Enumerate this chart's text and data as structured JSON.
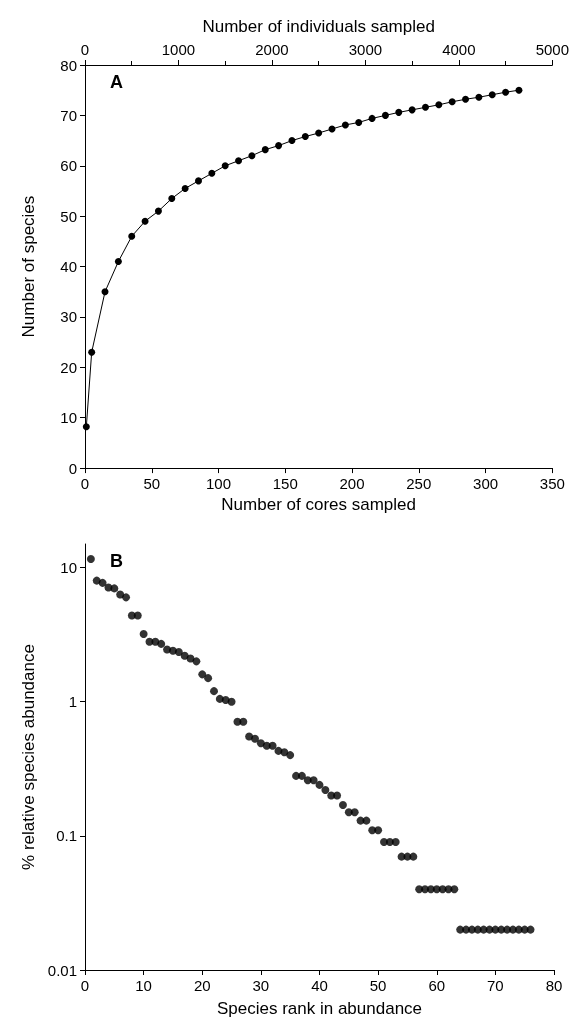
{
  "chart_data": [
    {
      "type": "line",
      "annotations": [
        "A"
      ],
      "xlabel": "Number of cores sampled",
      "ylabel": "Number of species",
      "x2label": "Number of individuals sampled",
      "x": [
        1,
        5,
        15,
        25,
        35,
        45,
        55,
        65,
        75,
        85,
        95,
        105,
        115,
        125,
        135,
        145,
        155,
        165,
        175,
        185,
        195,
        205,
        215,
        225,
        235,
        245,
        255,
        265,
        275,
        285,
        295,
        305,
        315,
        325
      ],
      "values": [
        8.2,
        23,
        35,
        41,
        46,
        49,
        51,
        53.5,
        55.5,
        57,
        58.5,
        60,
        61,
        62,
        63.2,
        64,
        65,
        65.8,
        66.5,
        67.3,
        68.1,
        68.6,
        69.4,
        70,
        70.6,
        71.1,
        71.6,
        72.1,
        72.7,
        73.2,
        73.6,
        74.1,
        74.6,
        75
      ],
      "color": "#000000",
      "marker": "circle",
      "line_style": "solid",
      "xlim": [
        0,
        350
      ],
      "xticks": [
        0,
        50,
        100,
        150,
        200,
        250,
        300,
        350
      ],
      "ylim": [
        0,
        80
      ],
      "yticks": [
        0,
        10,
        20,
        30,
        40,
        50,
        60,
        70,
        80
      ],
      "x2lim": [
        0,
        5000
      ],
      "x2ticks": [
        0,
        1000,
        2000,
        3000,
        4000,
        5000
      ]
    },
    {
      "type": "scatter",
      "annotations": [
        "B"
      ],
      "xlabel": "Species rank in abundance",
      "ylabel": "% relative species abundance",
      "log": "y",
      "x": [
        1,
        2,
        3,
        4,
        5,
        6,
        7,
        8,
        9,
        10,
        11,
        12,
        13,
        14,
        15,
        16,
        17,
        18,
        19,
        20,
        21,
        22,
        23,
        24,
        25,
        26,
        27,
        28,
        29,
        30,
        31,
        32,
        33,
        34,
        35,
        36,
        37,
        38,
        39,
        40,
        41,
        42,
        43,
        44,
        45,
        46,
        47,
        48,
        49,
        50,
        51,
        52,
        53,
        54,
        55,
        56,
        57,
        58,
        59,
        60,
        61,
        62,
        63,
        64,
        65,
        66,
        67,
        68,
        69,
        70,
        71,
        72,
        73,
        74,
        75,
        76
      ],
      "values": [
        11.6,
        8.0,
        7.7,
        7.1,
        7.0,
        6.3,
        6.0,
        4.4,
        4.4,
        3.2,
        2.8,
        2.8,
        2.7,
        2.45,
        2.4,
        2.35,
        2.2,
        2.1,
        2.0,
        1.6,
        1.5,
        1.2,
        1.05,
        1.03,
        1.0,
        0.71,
        0.71,
        0.55,
        0.53,
        0.49,
        0.47,
        0.47,
        0.43,
        0.42,
        0.4,
        0.28,
        0.28,
        0.26,
        0.26,
        0.24,
        0.22,
        0.2,
        0.2,
        0.17,
        0.15,
        0.15,
        0.13,
        0.13,
        0.11,
        0.11,
        0.09,
        0.09,
        0.09,
        0.07,
        0.07,
        0.07,
        0.04,
        0.04,
        0.04,
        0.04,
        0.04,
        0.04,
        0.04,
        0.02,
        0.02,
        0.02,
        0.02,
        0.02,
        0.02,
        0.02,
        0.02,
        0.02,
        0.02,
        0.02,
        0.02,
        0.02
      ],
      "color": "#000000",
      "marker": "circle",
      "xlim": [
        0,
        80
      ],
      "xticks": [
        0,
        10,
        20,
        30,
        40,
        50,
        60,
        70,
        80
      ],
      "ylim": [
        0.01,
        15
      ],
      "yticks": [
        0.01,
        0.1,
        1,
        10
      ]
    }
  ]
}
